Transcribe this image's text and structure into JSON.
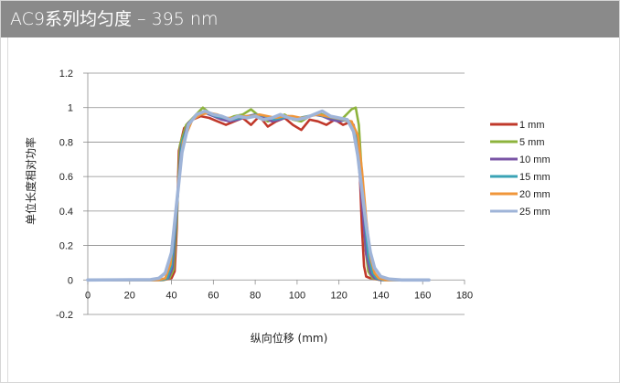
{
  "header": {
    "title": "AC9系列均匀度 – 395 nm"
  },
  "chart_data": {
    "type": "line",
    "title": "",
    "xlabel": "纵向位移 (mm)",
    "ylabel": "单位长度相对功率",
    "xlim": [
      0,
      180
    ],
    "ylim": [
      -0.2,
      1.2
    ],
    "x_ticks": [
      "0",
      "20",
      "40",
      "60",
      "80",
      "100",
      "120",
      "140",
      "160",
      "180"
    ],
    "y_ticks": [
      "1.2",
      "1",
      "0.8",
      "0.6",
      "0.4",
      "0.2",
      "0",
      "-0.2"
    ],
    "grid": "horizontal",
    "legend_position": "right",
    "series": [
      {
        "name": "1 mm",
        "color": "#c0392b",
        "x": [
          0,
          36,
          40,
          41.5,
          42.5,
          43.5,
          46,
          50,
          54,
          58,
          62,
          66,
          70,
          74,
          78,
          82,
          86,
          90,
          94,
          98,
          102,
          106,
          110,
          114,
          118,
          122,
          126,
          128,
          130,
          131,
          132,
          133,
          135,
          140,
          163
        ],
        "y": [
          0,
          0,
          0.01,
          0.05,
          0.3,
          0.75,
          0.88,
          0.93,
          0.95,
          0.94,
          0.92,
          0.9,
          0.92,
          0.94,
          0.9,
          0.95,
          0.89,
          0.92,
          0.94,
          0.9,
          0.87,
          0.93,
          0.92,
          0.9,
          0.93,
          0.9,
          0.92,
          0.85,
          0.6,
          0.3,
          0.08,
          0.02,
          0.01,
          0,
          0
        ]
      },
      {
        "name": "5 mm",
        "color": "#8db33c",
        "x": [
          0,
          36,
          39,
          41,
          42.5,
          44,
          47,
          51,
          55,
          58,
          62,
          66,
          70,
          74,
          78,
          82,
          86,
          90,
          94,
          98,
          102,
          106,
          110,
          114,
          118,
          122,
          126,
          128,
          129.5,
          131,
          132.5,
          134,
          136,
          140,
          163
        ],
        "y": [
          0,
          0,
          0.01,
          0.06,
          0.35,
          0.78,
          0.9,
          0.95,
          1.0,
          0.97,
          0.94,
          0.93,
          0.95,
          0.96,
          0.99,
          0.95,
          0.92,
          0.94,
          0.96,
          0.93,
          0.92,
          0.95,
          0.97,
          0.95,
          0.93,
          0.94,
          0.99,
          1.0,
          0.9,
          0.6,
          0.2,
          0.05,
          0.01,
          0,
          0
        ]
      },
      {
        "name": "10 mm",
        "color": "#7a55a6",
        "x": [
          0,
          35,
          38.5,
          40.5,
          42.5,
          44.5,
          48,
          52,
          56,
          60,
          64,
          68,
          72,
          76,
          80,
          84,
          88,
          92,
          96,
          100,
          104,
          108,
          112,
          116,
          120,
          124,
          127,
          129,
          131,
          133,
          135,
          137,
          140,
          163
        ],
        "y": [
          0,
          0,
          0.01,
          0.07,
          0.4,
          0.78,
          0.91,
          0.95,
          0.97,
          0.95,
          0.93,
          0.92,
          0.93,
          0.95,
          0.96,
          0.94,
          0.92,
          0.93,
          0.95,
          0.93,
          0.94,
          0.96,
          0.95,
          0.93,
          0.92,
          0.93,
          0.9,
          0.75,
          0.45,
          0.15,
          0.04,
          0.01,
          0,
          0
        ]
      },
      {
        "name": "15 mm",
        "color": "#3aa3b5",
        "x": [
          0,
          35,
          38,
          40,
          42.5,
          45,
          49,
          53,
          57,
          61,
          65,
          69,
          73,
          77,
          81,
          85,
          89,
          93,
          97,
          101,
          105,
          109,
          113,
          117,
          121,
          125,
          128,
          130,
          132,
          134,
          136,
          138,
          141,
          163
        ],
        "y": [
          0,
          0,
          0.01,
          0.08,
          0.42,
          0.8,
          0.92,
          0.96,
          0.97,
          0.95,
          0.94,
          0.93,
          0.94,
          0.95,
          0.96,
          0.95,
          0.93,
          0.94,
          0.95,
          0.94,
          0.95,
          0.96,
          0.95,
          0.94,
          0.93,
          0.92,
          0.86,
          0.68,
          0.4,
          0.14,
          0.04,
          0.01,
          0,
          0
        ]
      },
      {
        "name": "20 mm",
        "color": "#f0963a",
        "x": [
          0,
          34,
          37,
          39.5,
          42.5,
          45.5,
          50,
          54,
          58,
          62,
          66,
          70,
          74,
          78,
          82,
          86,
          90,
          94,
          98,
          102,
          106,
          110,
          114,
          118,
          122,
          126,
          129,
          131,
          133,
          135,
          137,
          139,
          142,
          163
        ],
        "y": [
          0,
          0,
          0.01,
          0.09,
          0.44,
          0.8,
          0.93,
          0.96,
          0.97,
          0.96,
          0.94,
          0.94,
          0.95,
          0.95,
          0.96,
          0.95,
          0.94,
          0.95,
          0.95,
          0.94,
          0.95,
          0.96,
          0.95,
          0.94,
          0.93,
          0.92,
          0.84,
          0.64,
          0.36,
          0.13,
          0.04,
          0.01,
          0,
          0
        ]
      },
      {
        "name": "25 mm",
        "color": "#9fb4d8",
        "x": [
          0,
          30,
          34,
          37,
          40,
          42.5,
          45,
          48,
          52,
          56,
          60,
          64,
          68,
          72,
          76,
          80,
          84,
          88,
          92,
          96,
          100,
          104,
          108,
          112,
          116,
          120,
          124,
          127,
          129,
          131,
          133,
          135,
          137,
          140,
          144,
          150,
          163
        ],
        "y": [
          0,
          0.002,
          0.01,
          0.04,
          0.16,
          0.45,
          0.74,
          0.9,
          0.96,
          0.98,
          0.96,
          0.95,
          0.93,
          0.95,
          0.94,
          0.95,
          0.93,
          0.94,
          0.96,
          0.94,
          0.93,
          0.94,
          0.96,
          0.98,
          0.95,
          0.94,
          0.93,
          0.86,
          0.72,
          0.52,
          0.32,
          0.16,
          0.07,
          0.02,
          0.005,
          0,
          0
        ]
      }
    ]
  }
}
